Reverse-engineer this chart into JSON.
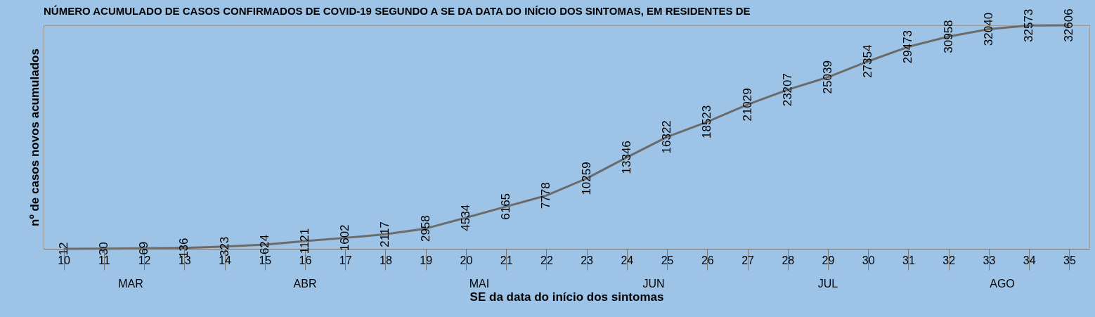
{
  "chart_data": {
    "type": "line",
    "title": "NÚMERO ACUMULADO DE CASOS CONFIRMADOS DE COVID-19 SEGUNDO A SE DA DATA DO INÍCIO DOS SINTOMAS, EM RESIDENTES DE",
    "xlabel": "SE da data do início dos sintomas",
    "ylabel": "nº de casos novos acumulados",
    "categories": [
      "10",
      "11",
      "12",
      "13",
      "14",
      "15",
      "16",
      "17",
      "18",
      "19",
      "20",
      "21",
      "22",
      "23",
      "24",
      "25",
      "26",
      "27",
      "28",
      "29",
      "30",
      "31",
      "32",
      "33",
      "34",
      "35"
    ],
    "series": [
      {
        "color": "#6b6b6b",
        "values": [
          12,
          30,
          69,
          136,
          323,
          624,
          1121,
          1602,
          2117,
          2958,
          4534,
          6165,
          7778,
          10259,
          13346,
          16322,
          18523,
          21029,
          23207,
          25039,
          27354,
          29473,
          30958,
          32040,
          32573,
          32606
        ]
      }
    ],
    "annotations": [
      "MAR",
      "ABR",
      "MAI",
      "JUN",
      "JUL",
      "AGO"
    ],
    "data_labels": true,
    "relative": false,
    "marker": "none",
    "line_style": "solid",
    "grid": false
  }
}
